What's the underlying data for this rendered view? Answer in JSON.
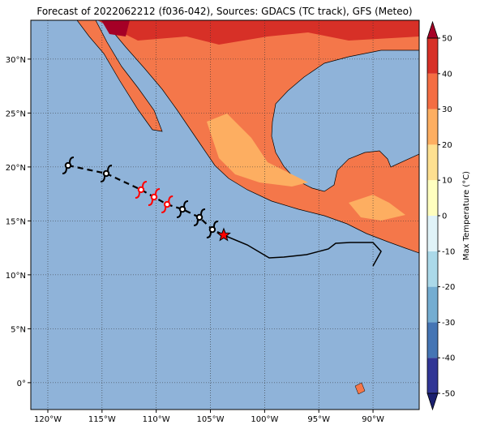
{
  "chart_data": {
    "type": "map",
    "title": "Forecast of 2022062212 (f036-042), Sources: GDACS (TC track), GFS (Meteo)",
    "xlim": [
      -121.57,
      -85.74
    ],
    "ylim": [
      -2.49,
      33.6
    ],
    "xticks": [
      {
        "value": -120,
        "label": "120°W"
      },
      {
        "value": -115,
        "label": "115°W"
      },
      {
        "value": -110,
        "label": "110°W"
      },
      {
        "value": -105,
        "label": "105°W"
      },
      {
        "value": -100,
        "label": "100°W"
      },
      {
        "value": -95,
        "label": "95°W"
      },
      {
        "value": -90,
        "label": "90°W"
      }
    ],
    "yticks": [
      {
        "value": 0,
        "label": "0°"
      },
      {
        "value": 5,
        "label": "5°N"
      },
      {
        "value": 10,
        "label": "10°N"
      },
      {
        "value": 15,
        "label": "15°N"
      },
      {
        "value": 20,
        "label": "20°N"
      },
      {
        "value": 25,
        "label": "25°N"
      },
      {
        "value": 30,
        "label": "30°N"
      }
    ],
    "grid": true,
    "track": [
      {
        "lon": -118.13,
        "lat": 20.14,
        "color": "#000000"
      },
      {
        "lon": -114.61,
        "lat": 19.39,
        "color": "#000000"
      },
      {
        "lon": -111.4,
        "lat": 17.89,
        "color": "#ff0000"
      },
      {
        "lon": -110.2,
        "lat": 17.21,
        "color": "#ff0000"
      },
      {
        "lon": -108.99,
        "lat": 16.53,
        "color": "#ff0000"
      },
      {
        "lon": -107.58,
        "lat": 16.08,
        "color": "#000000"
      },
      {
        "lon": -106.01,
        "lat": 15.33,
        "color": "#000000"
      },
      {
        "lon": -104.82,
        "lat": 14.2,
        "color": "#000000"
      }
    ],
    "star": {
      "lon": -103.77,
      "lat": 13.68,
      "color": "#ff0000"
    },
    "colorbar": {
      "label": "Max Temperature (°C)",
      "lim": [
        -50,
        50
      ],
      "ticks": [
        -50,
        -40,
        -30,
        -20,
        -10,
        0,
        10,
        20,
        30,
        40,
        50
      ],
      "colors": [
        "#313695",
        "#4575b4",
        "#74add1",
        "#abd9e9",
        "#e0f3f8",
        "#ffffbf",
        "#fee090",
        "#fdae61",
        "#f46d43",
        "#d73027"
      ],
      "extend_colors": [
        "#1a1f6e",
        "#a50026"
      ]
    }
  }
}
